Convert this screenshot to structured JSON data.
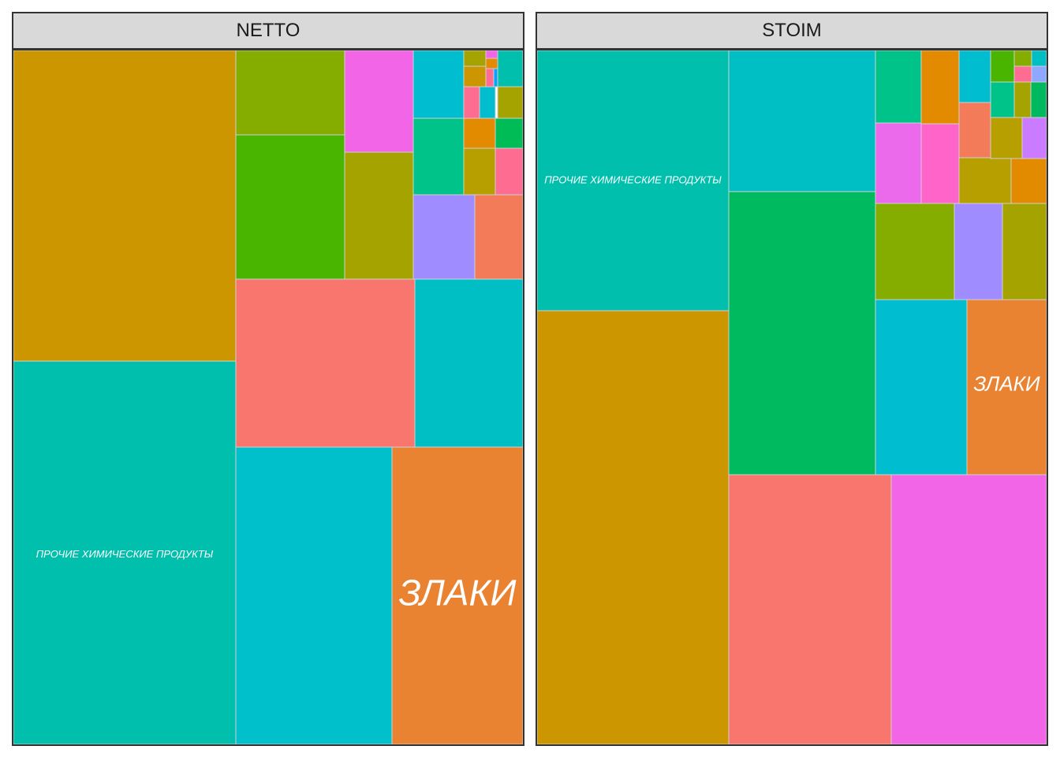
{
  "chart_data": [
    {
      "type": "treemap",
      "panel": "NETTO",
      "tiles": [
        {
          "color": "#CC9600",
          "value": 110.8
        },
        {
          "color": "#00BFAC",
          "value": 124.0,
          "label": "ПРОЧИЕ ХИМИЧЕСКИЕ ПРОДУКТЫ"
        },
        {
          "color": "#F8766D",
          "value": 48.4
        },
        {
          "color": "#00BFC4",
          "value": 31.3
        },
        {
          "color": "#00C0CB",
          "value": 74.7
        },
        {
          "color": "#EA8331",
          "value": 62.9,
          "label": "ЗЛАКИ"
        },
        {
          "color": "#84AD00",
          "value": 14.6
        },
        {
          "color": "#49B500",
          "value": 25.2
        },
        {
          "color": "#F265E7",
          "value": 11.2
        },
        {
          "color": "#A4A300",
          "value": 16.0
        },
        {
          "color": "#00C38A",
          "value": 3.6
        },
        {
          "color": "#9F8CFF",
          "value": 4.6
        },
        {
          "color": "#F37B59",
          "value": 5.0
        },
        {
          "color": "#E28A00",
          "value": 4.2
        },
        {
          "color": "#00BC56",
          "value": 0.6
        },
        {
          "color": "#B79F00",
          "value": 0.5
        },
        {
          "color": "#FF6C91",
          "value": 0.9
        },
        {
          "color": "#00BDD0",
          "value": 0.7
        }
      ]
    },
    {
      "type": "treemap",
      "panel": "STOIM",
      "tiles": [
        {
          "color": "#00BFAC",
          "value": 80.0,
          "label": "ПРОЧИЕ ХИМИЧЕСКИЕ ПРОДУКТЫ"
        },
        {
          "color": "#CC9600",
          "value": 134.0
        },
        {
          "color": "#00BFC4",
          "value": 32.9
        },
        {
          "color": "#00BA5F",
          "value": 66.3
        },
        {
          "color": "#F8766D",
          "value": 41.1
        },
        {
          "color": "#F265E7",
          "value": 40.0
        },
        {
          "color": "#00BDD0",
          "value": 25.4
        },
        {
          "color": "#EA8331",
          "value": 21.3,
          "label": "ЗЛАКИ"
        },
        {
          "color": "#84AD00",
          "value": 12.2
        },
        {
          "color": "#9F8CFF",
          "value": 7.3
        },
        {
          "color": "#A4A300",
          "value": 7.3
        },
        {
          "color": "#00C38A",
          "value": 5.3
        },
        {
          "color": "#E28A00",
          "value": 4.8
        },
        {
          "color": "#EB6AEB",
          "value": 5.3
        },
        {
          "color": "#FF64C8",
          "value": 5.3
        },
        {
          "color": "#F37B59",
          "value": 3.3
        },
        {
          "color": "#B79F00",
          "value": 2.8
        },
        {
          "color": "#CB7BFF",
          "value": 2.8
        }
      ]
    }
  ],
  "panels": [
    {
      "title": "NETTO"
    },
    {
      "title": "STOIM"
    }
  ]
}
